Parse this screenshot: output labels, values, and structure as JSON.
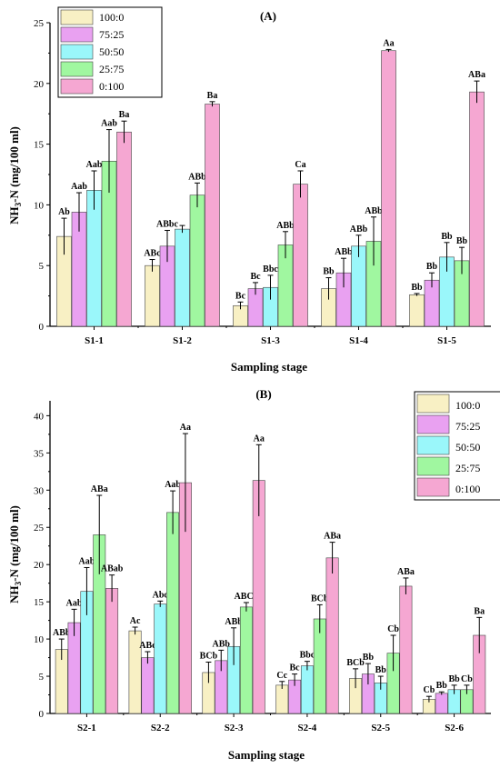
{
  "chart_data": [
    {
      "type": "bar",
      "title": "(A)",
      "xlabel": "Sampling stage",
      "ylabel_main": "NH",
      "ylabel_sub": "3",
      "ylabel_rest": "-N (mg/100 ml)",
      "ylim": [
        0,
        25
      ],
      "yticks": [
        0,
        5,
        10,
        15,
        20,
        25
      ],
      "legend_position": "top-left",
      "categories": [
        "S1-1",
        "S1-2",
        "S1-3",
        "S1-4",
        "S1-5"
      ],
      "series": [
        {
          "name": "100:0",
          "color": "#f8f0c4",
          "values": [
            7.4,
            5.0,
            1.7,
            3.1,
            2.6
          ],
          "errors": [
            1.5,
            0.5,
            0.3,
            0.9,
            0.1
          ],
          "labels": [
            "Ab",
            "ABc",
            "Bc",
            "Bb",
            "Bb"
          ]
        },
        {
          "name": "75:25",
          "color": "#e9a1f1",
          "values": [
            9.4,
            6.6,
            3.1,
            4.4,
            3.8
          ],
          "errors": [
            1.6,
            1.3,
            0.5,
            1.2,
            0.6
          ],
          "labels": [
            "Aab",
            "ABbc",
            "Bc",
            "ABb",
            "Bb"
          ]
        },
        {
          "name": "50:50",
          "color": "#9af7fa",
          "values": [
            11.2,
            8.0,
            3.2,
            6.6,
            5.7
          ],
          "errors": [
            1.6,
            0.3,
            1.0,
            0.9,
            1.2
          ],
          "labels": [
            "Aab",
            "",
            "Bbc",
            "ABb",
            "Bb"
          ]
        },
        {
          "name": "25:75",
          "color": "#a0f7a0",
          "values": [
            13.6,
            10.8,
            6.7,
            7.0,
            5.4
          ],
          "errors": [
            2.6,
            1.0,
            1.1,
            2.0,
            1.1
          ],
          "labels": [
            "Aab",
            "ABb",
            "ABb",
            "ABb",
            "Bb"
          ]
        },
        {
          "name": "0:100",
          "color": "#f5a7d2",
          "values": [
            16.0,
            18.3,
            11.7,
            22.7,
            19.3
          ],
          "errors": [
            0.9,
            0.2,
            1.1,
            0.1,
            0.9
          ],
          "labels": [
            "Ba",
            "Ba",
            "Ca",
            "Aa",
            "ABa"
          ]
        }
      ]
    },
    {
      "type": "bar",
      "title": "(B)",
      "xlabel": "Sampling stage",
      "ylabel_main": "NH",
      "ylabel_sub": "3",
      "ylabel_rest": "-N (mg/100 ml)",
      "ylim": [
        0,
        42
      ],
      "yticks": [
        0,
        5,
        10,
        15,
        20,
        25,
        30,
        35,
        40
      ],
      "legend_position": "top-right",
      "categories": [
        "S2-1",
        "S2-2",
        "S2-3",
        "S2-4",
        "S2-5",
        "S2-6"
      ],
      "series": [
        {
          "name": "100:0",
          "color": "#f8f0c4",
          "values": [
            8.6,
            11.1,
            5.5,
            3.8,
            4.7,
            1.9
          ],
          "errors": [
            1.4,
            0.5,
            1.4,
            0.5,
            1.3,
            0.4
          ],
          "labels": [
            "ABb",
            "Ac",
            "BCb",
            "Cc",
            "BCb",
            "Cb"
          ]
        },
        {
          "name": "75:25",
          "color": "#e9a1f1",
          "values": [
            12.2,
            7.5,
            7.1,
            4.5,
            5.3,
            2.7
          ],
          "errors": [
            1.8,
            0.8,
            1.4,
            0.8,
            1.4,
            0.2
          ],
          "labels": [
            "Aab",
            "ABc",
            "ABb",
            "Bc",
            "Bb",
            "Bb"
          ]
        },
        {
          "name": "50:50",
          "color": "#9af7fa",
          "values": [
            16.4,
            14.7,
            9.0,
            6.4,
            4.1,
            3.2
          ],
          "errors": [
            3.2,
            0.4,
            2.5,
            0.6,
            0.9,
            0.6
          ],
          "labels": [
            "Aab",
            "Abc",
            "ABb",
            "Bbc",
            "Bb",
            "Bb"
          ]
        },
        {
          "name": "25:75",
          "color": "#a0f7a0",
          "values": [
            24.0,
            27.0,
            14.3,
            12.7,
            8.1,
            3.2
          ],
          "errors": [
            5.3,
            2.9,
            0.6,
            1.9,
            2.4,
            0.6
          ],
          "labels": [
            "ABa",
            "Aab",
            "ABCb",
            "BCb",
            "Cb",
            "Cb"
          ]
        },
        {
          "name": "0:100",
          "color": "#f5a7d2",
          "values": [
            16.8,
            31.0,
            31.3,
            20.9,
            17.1,
            10.5
          ],
          "errors": [
            1.8,
            6.6,
            4.8,
            2.1,
            1.1,
            2.4
          ],
          "labels": [
            "ABab",
            "Aa",
            "Aa",
            "ABa",
            "ABa",
            "Ba"
          ]
        }
      ]
    }
  ]
}
